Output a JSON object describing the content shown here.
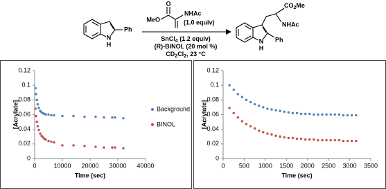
{
  "scheme": {
    "reactant": {
      "substituent": "Ph",
      "n": "N",
      "h": "H"
    },
    "reagent": {
      "o": "O",
      "ester": "MeO",
      "amide": "NHAc",
      "amount": "(1.0 equiv)"
    },
    "conditions": [
      [
        "SnCl",
        "4",
        " (1.2 equiv)"
      ],
      [
        "(R)-BINOL (20 mol %)"
      ],
      [
        "CD",
        "2",
        "Cl",
        "2",
        ", 23 °C"
      ]
    ],
    "product": {
      "ester": [
        "CO",
        "2",
        "Me"
      ],
      "amide": "NHAc",
      "substituent": "Ph",
      "n": "N",
      "h": "H"
    }
  },
  "chart_data": [
    {
      "type": "scatter",
      "x_label": "Time (sec)",
      "y_label": "[Acrylate]",
      "x": [
        300,
        500,
        800,
        1100,
        1500,
        2000,
        2500,
        3000,
        3500,
        4000,
        5000,
        6000,
        7000,
        10000,
        14000,
        18000,
        22000,
        25000,
        28000,
        29000,
        32000
      ],
      "series": [
        {
          "name": "Background",
          "color": "#4f81bd",
          "values": [
            0.096,
            0.088,
            0.08,
            0.074,
            0.069,
            0.065,
            0.063,
            0.062,
            0.061,
            0.06,
            0.06,
            0.059,
            0.059,
            0.058,
            0.058,
            0.057,
            0.057,
            0.056,
            0.056,
            0.056,
            0.055
          ]
        },
        {
          "name": "BINOL",
          "color": "#c0504d",
          "values": [
            0.068,
            0.058,
            0.05,
            0.044,
            0.039,
            0.034,
            0.031,
            0.029,
            0.027,
            0.026,
            0.024,
            0.023,
            0.022,
            0.018,
            0.018,
            0.017,
            0.016,
            0.015,
            0.015,
            0.015,
            0.014
          ]
        }
      ],
      "xlim": [
        0,
        40000
      ],
      "xticks": [
        0,
        10000,
        20000,
        30000,
        40000
      ],
      "ylim": [
        0,
        0.12
      ],
      "yticks": [
        0,
        0.02,
        0.04,
        0.06,
        0.08,
        0.1,
        0.12
      ],
      "legend": "right",
      "grid": false
    },
    {
      "type": "scatter",
      "x_label": "Time (sec)",
      "y_label": "[Acrylate]",
      "x": [
        150,
        250,
        350,
        450,
        550,
        650,
        750,
        850,
        950,
        1050,
        1150,
        1250,
        1350,
        1450,
        1550,
        1650,
        1750,
        1850,
        1950,
        2050,
        2150,
        2250,
        2350,
        2450,
        2550,
        2650,
        2750,
        2850,
        2950,
        3050,
        3150
      ],
      "series": [
        {
          "color": "#4f81bd",
          "values": [
            0.1,
            0.094,
            0.088,
            0.084,
            0.08,
            0.077,
            0.074,
            0.072,
            0.07,
            0.068,
            0.067,
            0.066,
            0.065,
            0.064,
            0.063,
            0.062,
            0.062,
            0.061,
            0.061,
            0.061,
            0.06,
            0.06,
            0.06,
            0.06,
            0.06,
            0.06,
            0.06,
            0.059,
            0.059,
            0.059,
            0.059
          ]
        },
        {
          "color": "#c0504d",
          "values": [
            0.069,
            0.062,
            0.056,
            0.051,
            0.047,
            0.044,
            0.041,
            0.038,
            0.036,
            0.034,
            0.033,
            0.031,
            0.03,
            0.029,
            0.028,
            0.028,
            0.027,
            0.027,
            0.026,
            0.026,
            0.026,
            0.025,
            0.025,
            0.025,
            0.025,
            0.025,
            0.025,
            0.024,
            0.024,
            0.024,
            0.024
          ]
        }
      ],
      "xlim": [
        0,
        3500
      ],
      "xticks": [
        0,
        500,
        1000,
        1500,
        2000,
        2500,
        3000,
        3500
      ],
      "ylim": [
        0,
        0.12
      ],
      "yticks": [
        0,
        0.02,
        0.04,
        0.06,
        0.08,
        0.1,
        0.12
      ],
      "grid": false
    }
  ]
}
